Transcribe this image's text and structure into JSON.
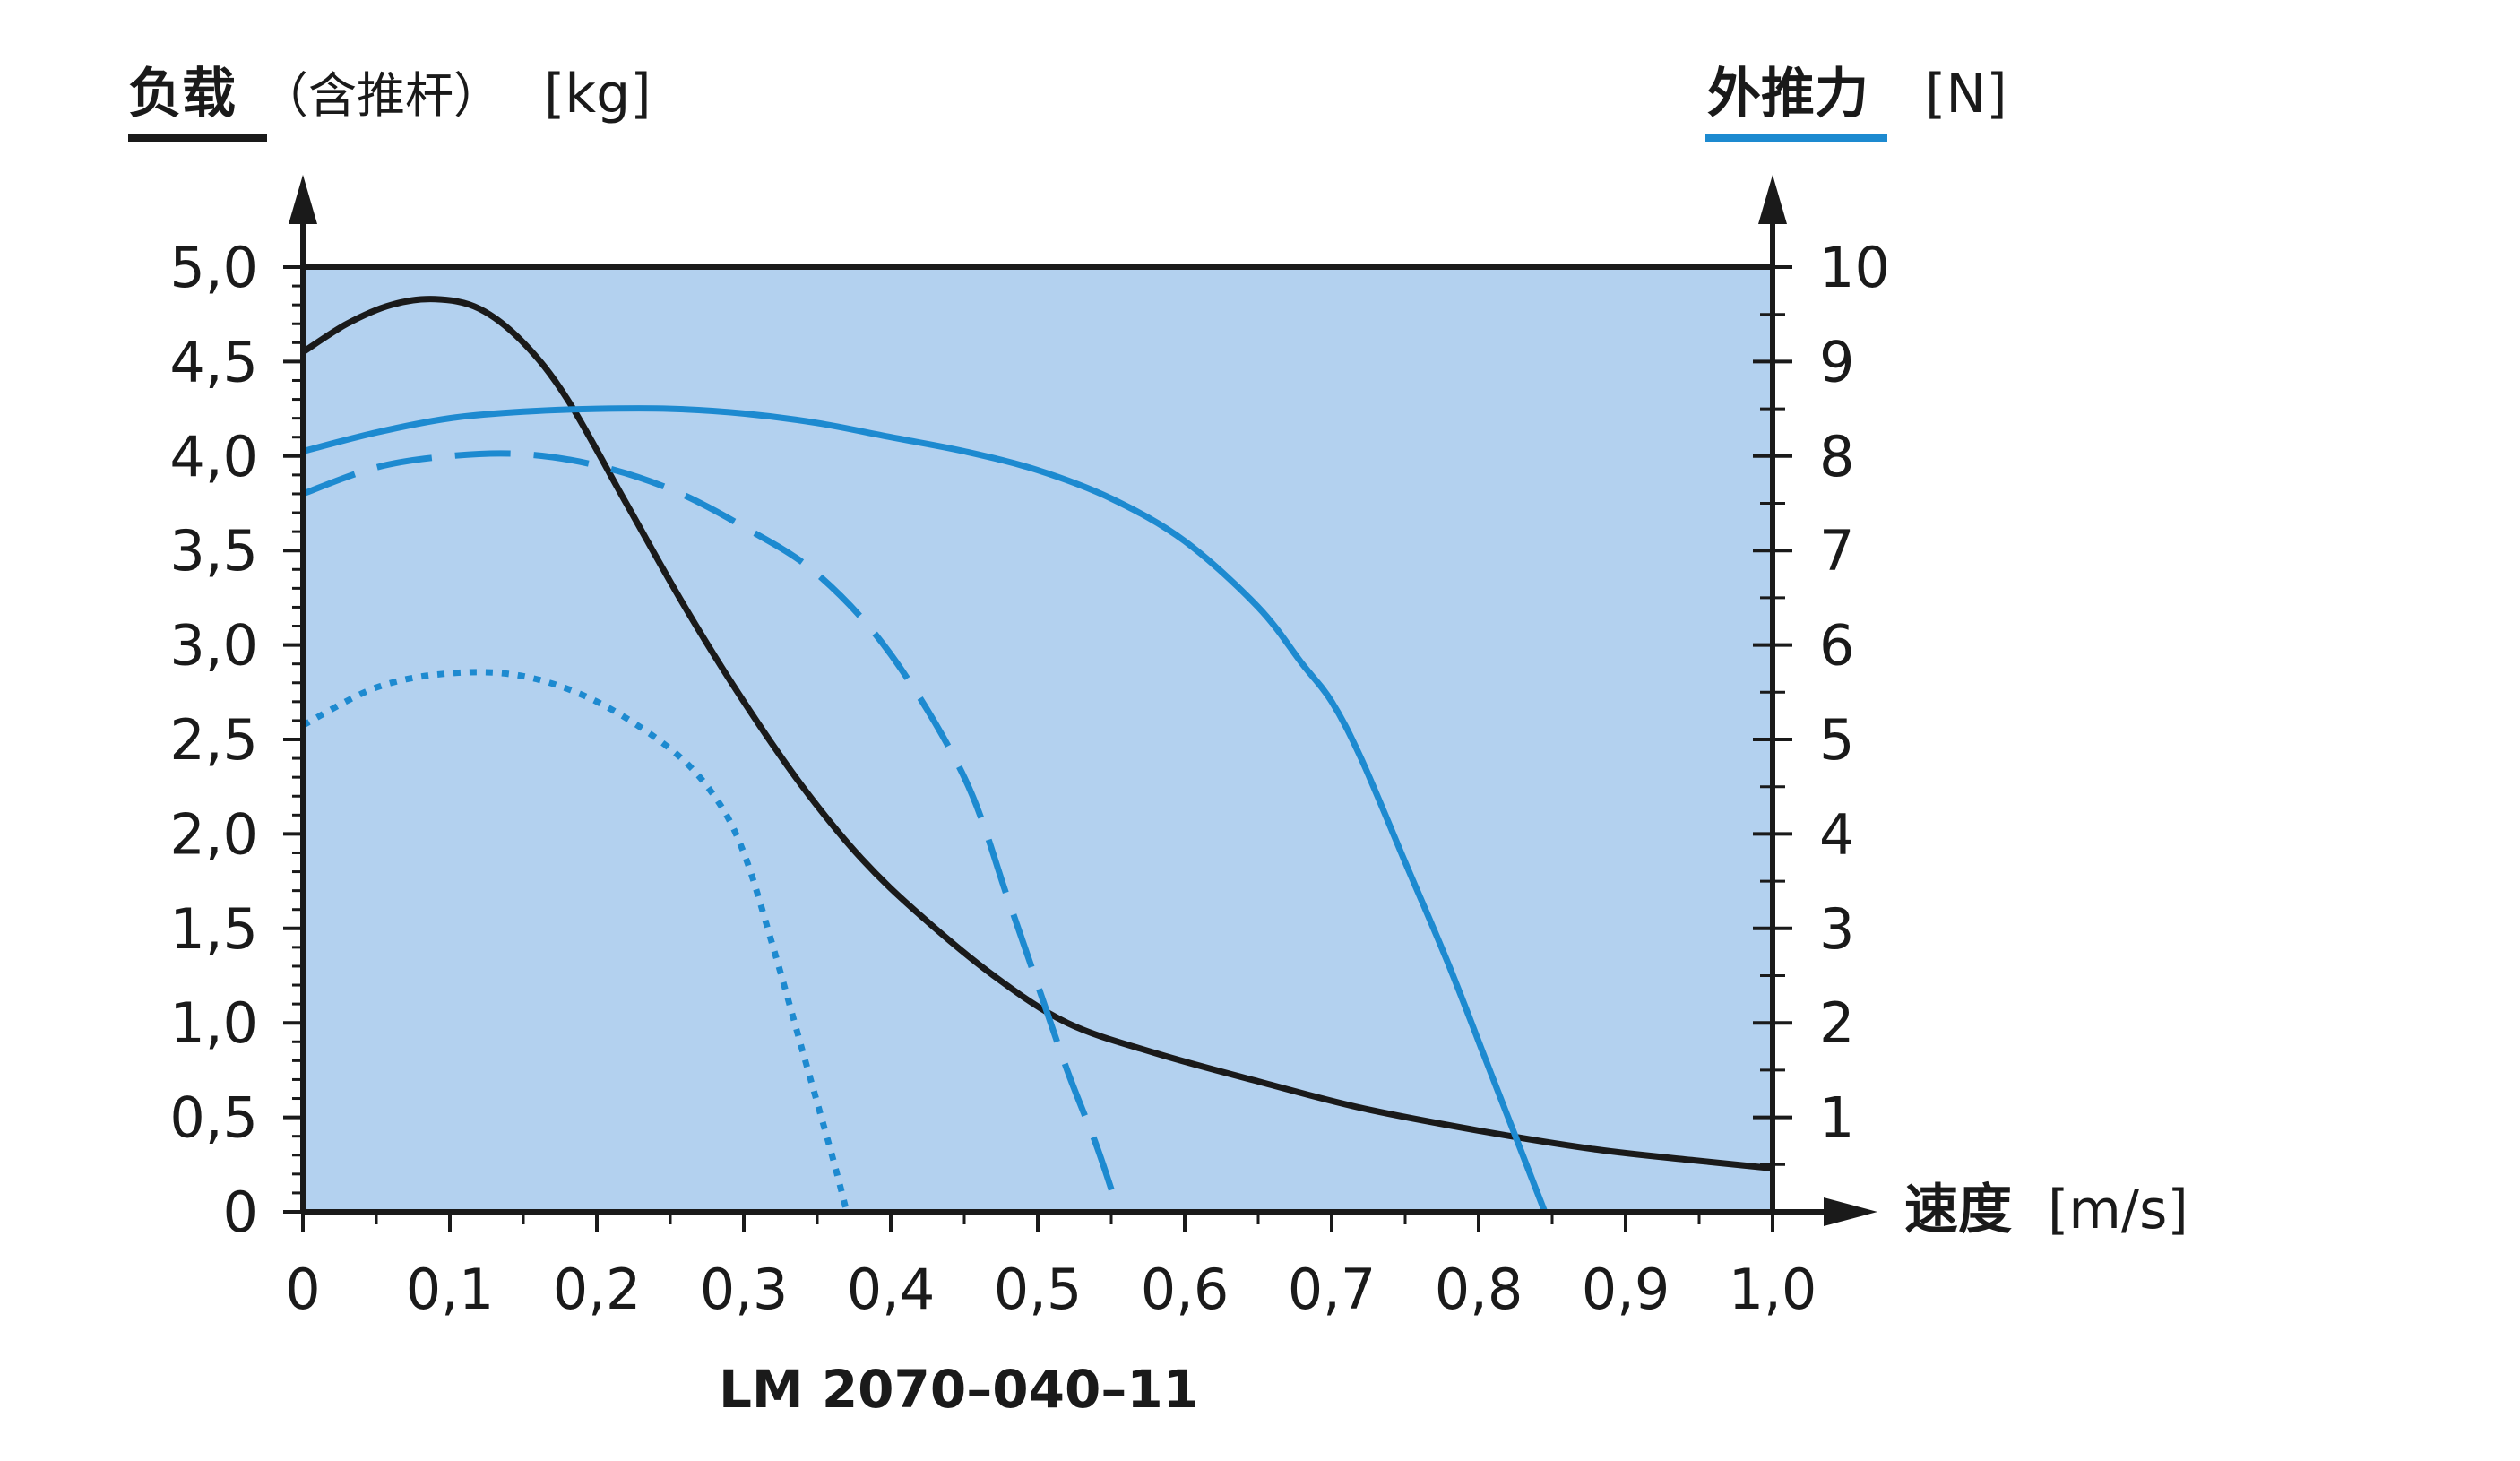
{
  "chart_data": {
    "type": "line",
    "title": "LM 2070–040–11",
    "xlabel": {
      "main": "速度",
      "unit": "[m/s]"
    },
    "ylabel_left": {
      "main": "负载",
      "sub": "（含推杆）",
      "unit": "[kg]"
    },
    "ylabel_right": {
      "main": "外推力",
      "unit": "[N]"
    },
    "xlim": [
      0,
      1.0
    ],
    "ylim_left": [
      0,
      5.0
    ],
    "ylim_right": [
      0,
      10
    ],
    "x_ticks": [
      0,
      0.1,
      0.2,
      0.3,
      0.4,
      0.5,
      0.6,
      0.7,
      0.8,
      0.9,
      1.0
    ],
    "x_tick_labels": [
      "0",
      "0,1",
      "0,2",
      "0,3",
      "0,4",
      "0,5",
      "0,6",
      "0,7",
      "0,8",
      "0,9",
      "1,0"
    ],
    "y_left_ticks": [
      0,
      0.5,
      1.0,
      1.5,
      2.0,
      2.5,
      3.0,
      3.5,
      4.0,
      4.5,
      5.0
    ],
    "y_left_tick_labels": [
      "0",
      "0,5",
      "1,0",
      "1,5",
      "2,0",
      "2,5",
      "3,0",
      "3,5",
      "4,0",
      "4,5",
      "5,0"
    ],
    "y_right_ticks": [
      1,
      2,
      3,
      4,
      5,
      6,
      7,
      8,
      9,
      10
    ],
    "y_right_tick_labels": [
      "1",
      "2",
      "3",
      "4",
      "5",
      "6",
      "7",
      "8",
      "9",
      "10"
    ],
    "grid": false,
    "colors": {
      "plot_bg": "#b3d1ef",
      "load": "#1a1a1a",
      "force": "#1d8ad0",
      "axis": "#1a1a1a"
    },
    "series": [
      {
        "axis": "left",
        "style": "solid",
        "color": "#1a1a1a",
        "x": [
          0,
          0.03,
          0.06,
          0.09,
          0.12,
          0.15,
          0.18,
          0.22,
          0.26,
          0.3,
          0.34,
          0.38,
          0.42,
          0.47,
          0.52,
          0.58,
          0.65,
          0.72,
          0.8,
          0.88,
          0.95,
          1.0
        ],
        "y": [
          4.55,
          4.7,
          4.8,
          4.83,
          4.78,
          4.6,
          4.3,
          3.75,
          3.2,
          2.7,
          2.25,
          1.87,
          1.57,
          1.25,
          1.0,
          0.84,
          0.69,
          0.55,
          0.43,
          0.33,
          0.27,
          0.23
        ]
      },
      {
        "axis": "right",
        "style": "solid",
        "color": "#1d8ad0",
        "x": [
          0,
          0.05,
          0.1,
          0.15,
          0.2,
          0.25,
          0.3,
          0.35,
          0.4,
          0.45,
          0.5,
          0.55,
          0.6,
          0.65,
          0.68,
          0.7,
          0.72,
          0.75,
          0.78,
          0.81,
          0.845
        ],
        "y": [
          8.05,
          8.25,
          8.4,
          8.47,
          8.5,
          8.5,
          8.45,
          8.35,
          8.2,
          8.05,
          7.85,
          7.55,
          7.1,
          6.4,
          5.8,
          5.4,
          4.8,
          3.7,
          2.6,
          1.4,
          0
        ]
      },
      {
        "axis": "right",
        "style": "dashed",
        "color": "#1d8ad0",
        "x": [
          0,
          0.05,
          0.1,
          0.15,
          0.2,
          0.25,
          0.3,
          0.35,
          0.4,
          0.45,
          0.48,
          0.5,
          0.52,
          0.54,
          0.555
        ],
        "y": [
          7.6,
          7.88,
          8.0,
          8.02,
          7.9,
          7.65,
          7.25,
          6.75,
          5.9,
          4.6,
          3.3,
          2.4,
          1.5,
          0.7,
          0
        ]
      },
      {
        "axis": "right",
        "style": "dotted",
        "color": "#1d8ad0",
        "x": [
          0,
          0.05,
          0.1,
          0.15,
          0.2,
          0.25,
          0.28,
          0.3,
          0.32,
          0.34,
          0.36,
          0.37
        ],
        "y": [
          5.15,
          5.55,
          5.7,
          5.67,
          5.4,
          4.9,
          4.4,
          3.8,
          2.8,
          1.7,
          0.6,
          0
        ]
      }
    ]
  }
}
